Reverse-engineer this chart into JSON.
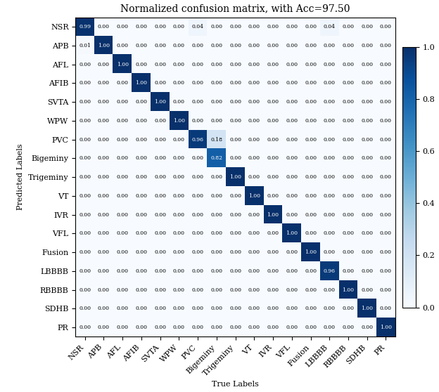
{
  "title": "Normalized confusion matrix, with Acc=97.50",
  "xlabel": "True Labels",
  "ylabel": "Predicted Labels",
  "classes": [
    "NSR",
    "APB",
    "AFL",
    "AFIB",
    "SVTA",
    "WPW",
    "PVC",
    "Bigeminy",
    "Trigeminy",
    "VT",
    "IVR",
    "VFL",
    "Fusion",
    "LBBBB",
    "RBBBB",
    "SDHB",
    "PR"
  ],
  "matrix": [
    [
      0.99,
      0.0,
      0.0,
      0.0,
      0.0,
      0.0,
      0.04,
      0.0,
      0.0,
      0.0,
      0.0,
      0.0,
      0.0,
      0.04,
      0.0,
      0.0,
      0.0
    ],
    [
      0.01,
      1.0,
      0.0,
      0.0,
      0.0,
      0.0,
      0.0,
      0.0,
      0.0,
      0.0,
      0.0,
      0.0,
      0.0,
      0.0,
      0.0,
      0.0,
      0.0
    ],
    [
      0.0,
      0.0,
      1.0,
      0.0,
      0.0,
      0.0,
      0.0,
      0.0,
      0.0,
      0.0,
      0.0,
      0.0,
      0.0,
      0.0,
      0.0,
      0.0,
      0.0
    ],
    [
      0.0,
      0.0,
      0.0,
      1.0,
      0.0,
      0.0,
      0.0,
      0.0,
      0.0,
      0.0,
      0.0,
      0.0,
      0.0,
      0.0,
      0.0,
      0.0,
      0.0
    ],
    [
      0.0,
      0.0,
      0.0,
      0.0,
      1.0,
      0.0,
      0.0,
      0.0,
      0.0,
      0.0,
      0.0,
      0.0,
      0.0,
      0.0,
      0.0,
      0.0,
      0.0
    ],
    [
      0.0,
      0.0,
      0.0,
      0.0,
      0.0,
      1.0,
      0.0,
      0.0,
      0.0,
      0.0,
      0.0,
      0.0,
      0.0,
      0.0,
      0.0,
      0.0,
      0.0
    ],
    [
      0.0,
      0.0,
      0.0,
      0.0,
      0.0,
      0.0,
      0.96,
      0.18,
      0.0,
      0.0,
      0.0,
      0.0,
      0.0,
      0.0,
      0.0,
      0.0,
      0.0
    ],
    [
      0.0,
      0.0,
      0.0,
      0.0,
      0.0,
      0.0,
      0.0,
      0.82,
      0.0,
      0.0,
      0.0,
      0.0,
      0.0,
      0.0,
      0.0,
      0.0,
      0.0
    ],
    [
      0.0,
      0.0,
      0.0,
      0.0,
      0.0,
      0.0,
      0.0,
      0.0,
      1.0,
      0.0,
      0.0,
      0.0,
      0.0,
      0.0,
      0.0,
      0.0,
      0.0
    ],
    [
      0.0,
      0.0,
      0.0,
      0.0,
      0.0,
      0.0,
      0.0,
      0.0,
      0.0,
      1.0,
      0.0,
      0.0,
      0.0,
      0.0,
      0.0,
      0.0,
      0.0
    ],
    [
      0.0,
      0.0,
      0.0,
      0.0,
      0.0,
      0.0,
      0.0,
      0.0,
      0.0,
      0.0,
      1.0,
      0.0,
      0.0,
      0.0,
      0.0,
      0.0,
      0.0
    ],
    [
      0.0,
      0.0,
      0.0,
      0.0,
      0.0,
      0.0,
      0.0,
      0.0,
      0.0,
      0.0,
      0.0,
      1.0,
      0.0,
      0.0,
      0.0,
      0.0,
      0.0
    ],
    [
      0.0,
      0.0,
      0.0,
      0.0,
      0.0,
      0.0,
      0.0,
      0.0,
      0.0,
      0.0,
      0.0,
      0.0,
      1.0,
      0.0,
      0.0,
      0.0,
      0.0
    ],
    [
      0.0,
      0.0,
      0.0,
      0.0,
      0.0,
      0.0,
      0.0,
      0.0,
      0.0,
      0.0,
      0.0,
      0.0,
      0.0,
      0.96,
      0.0,
      0.0,
      0.0
    ],
    [
      0.0,
      0.0,
      0.0,
      0.0,
      0.0,
      0.0,
      0.0,
      0.0,
      0.0,
      0.0,
      0.0,
      0.0,
      0.0,
      0.0,
      1.0,
      0.0,
      0.0
    ],
    [
      0.0,
      0.0,
      0.0,
      0.0,
      0.0,
      0.0,
      0.0,
      0.0,
      0.0,
      0.0,
      0.0,
      0.0,
      0.0,
      0.0,
      0.0,
      1.0,
      0.0
    ],
    [
      0.0,
      0.0,
      0.0,
      0.0,
      0.0,
      0.0,
      0.0,
      0.0,
      0.0,
      0.0,
      0.0,
      0.0,
      0.0,
      0.0,
      0.0,
      0.0,
      1.0
    ]
  ],
  "vmin": 0.0,
  "vmax": 1.0,
  "colormap": "Blues",
  "text_thresh": 0.5,
  "cell_fontsize": 5.5,
  "title_fontsize": 10,
  "label_fontsize": 8,
  "tick_fontsize": 8,
  "colorbar_ticks": [
    0.0,
    0.2,
    0.4,
    0.6,
    0.8,
    1.0
  ],
  "colorbar_fontsize": 8,
  "figwidth": 6.24,
  "figheight": 5.58,
  "dpi": 100
}
